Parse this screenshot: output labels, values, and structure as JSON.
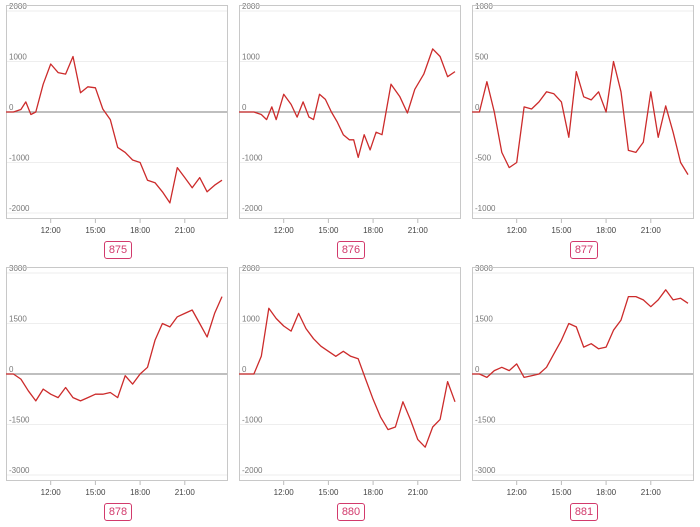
{
  "chart_data": [
    {
      "type": "line",
      "title": "875",
      "yticks": [
        -2000,
        -1000,
        0,
        1000,
        2000
      ],
      "ylim": [
        -2000,
        2000
      ],
      "xticks": [
        "12:00",
        "15:00",
        "18:00",
        "21:00"
      ],
      "grid": true,
      "series": [
        {
          "color": "#cc2b2b",
          "x": [
            9.0,
            9.5,
            10.0,
            10.33,
            10.67,
            11.0,
            11.5,
            12.0,
            12.5,
            13.0,
            13.5,
            14.0,
            14.5,
            15.0,
            15.5,
            16.0,
            16.5,
            17.0,
            17.5,
            18.0,
            18.5,
            19.0,
            19.5,
            20.0,
            20.5,
            21.0,
            21.5,
            22.0,
            22.5,
            23.0,
            23.5
          ],
          "values": [
            0,
            0,
            50,
            200,
            -50,
            0,
            550,
            950,
            780,
            750,
            1100,
            380,
            500,
            480,
            60,
            -150,
            -700,
            -800,
            -950,
            -1000,
            -1350,
            -1400,
            -1580,
            -1800,
            -1100,
            -1300,
            -1500,
            -1300,
            -1580,
            -1450,
            -1350
          ]
        }
      ]
    },
    {
      "type": "line",
      "title": "876",
      "yticks": [
        -2000,
        -1000,
        0,
        1000,
        2000
      ],
      "ylim": [
        -2000,
        2000
      ],
      "xticks": [
        "12:00",
        "15:00",
        "18:00",
        "21:00"
      ],
      "grid": true,
      "series": [
        {
          "color": "#cc2b2b",
          "x": [
            9.0,
            10.0,
            10.5,
            10.85,
            11.2,
            11.5,
            12.0,
            12.5,
            12.9,
            13.3,
            13.7,
            14.0,
            14.4,
            14.8,
            15.2,
            15.6,
            16.0,
            16.4,
            16.7,
            17.0,
            17.4,
            17.8,
            18.2,
            18.6,
            19.2,
            19.8,
            20.3,
            20.8,
            21.4,
            22.0,
            22.5,
            23.0,
            23.5
          ],
          "values": [
            0,
            0,
            -50,
            -150,
            100,
            -150,
            350,
            150,
            -100,
            200,
            -100,
            -150,
            350,
            250,
            0,
            -200,
            -450,
            -550,
            -550,
            -900,
            -450,
            -750,
            -400,
            -450,
            550,
            300,
            -20,
            450,
            750,
            1250,
            1100,
            700,
            800
          ]
        }
      ]
    },
    {
      "type": "line",
      "title": "877",
      "yticks": [
        -1000,
        -500,
        0,
        500,
        1000
      ],
      "ylim": [
        -1000,
        1000
      ],
      "xticks": [
        "12:00",
        "15:00",
        "18:00",
        "21:00"
      ],
      "grid": true,
      "series": [
        {
          "color": "#cc2b2b",
          "x": [
            9.0,
            9.5,
            10.0,
            10.5,
            11.0,
            11.5,
            12.0,
            12.5,
            13.0,
            13.5,
            14.0,
            14.5,
            15.0,
            15.5,
            16.0,
            16.5,
            17.0,
            17.5,
            18.0,
            18.5,
            19.0,
            19.5,
            20.0,
            20.5,
            21.0,
            21.5,
            22.0,
            22.5,
            23.0,
            23.5
          ],
          "values": [
            0,
            0,
            300,
            0,
            -400,
            -550,
            -500,
            50,
            30,
            100,
            200,
            180,
            100,
            -250,
            400,
            150,
            120,
            200,
            0,
            500,
            200,
            -380,
            -400,
            -300,
            200,
            -250,
            60,
            -200,
            -500,
            -620
          ]
        }
      ]
    },
    {
      "type": "line",
      "title": "878",
      "yticks": [
        -3000,
        -1500,
        0,
        1500,
        3000
      ],
      "ylim": [
        -3000,
        3000
      ],
      "xticks": [
        "12:00",
        "15:00",
        "18:00",
        "21:00"
      ],
      "grid": true,
      "series": [
        {
          "color": "#cc2b2b",
          "x": [
            9.0,
            9.5,
            10.0,
            10.5,
            11.0,
            11.5,
            12.0,
            12.5,
            13.0,
            13.5,
            14.0,
            14.5,
            15.0,
            15.5,
            16.0,
            16.5,
            17.0,
            17.5,
            18.0,
            18.5,
            19.0,
            19.5,
            20.0,
            20.5,
            21.0,
            21.5,
            22.0,
            22.5,
            23.0,
            23.5
          ],
          "values": [
            0,
            0,
            -150,
            -500,
            -800,
            -450,
            -600,
            -700,
            -400,
            -700,
            -800,
            -700,
            -600,
            -600,
            -550,
            -700,
            -50,
            -300,
            0,
            200,
            1000,
            1500,
            1400,
            1700,
            1800,
            1900,
            1500,
            1100,
            1800,
            2300
          ]
        }
      ]
    },
    {
      "type": "line",
      "title": "880",
      "yticks": [
        -2000,
        -1000,
        0,
        1000,
        2000
      ],
      "ylim": [
        -2000,
        2000
      ],
      "xticks": [
        "12:00",
        "15:00",
        "18:00",
        "21:00"
      ],
      "grid": true,
      "series": [
        {
          "color": "#cc2b2b",
          "x": [
            9.0,
            10.0,
            10.5,
            11.0,
            11.5,
            12.0,
            12.5,
            13.0,
            13.5,
            14.0,
            14.5,
            15.0,
            15.5,
            16.0,
            16.5,
            17.0,
            17.5,
            18.0,
            18.5,
            19.0,
            19.5,
            20.0,
            20.5,
            21.0,
            21.5,
            22.0,
            22.5,
            23.0,
            23.5
          ],
          "values": [
            0,
            0,
            350,
            1300,
            1100,
            950,
            850,
            1200,
            900,
            700,
            550,
            450,
            350,
            450,
            350,
            300,
            -100,
            -500,
            -850,
            -1100,
            -1050,
            -550,
            -900,
            -1300,
            -1450,
            -1050,
            -900,
            -150,
            -550
          ]
        }
      ]
    },
    {
      "type": "line",
      "title": "881",
      "yticks": [
        -3000,
        -1500,
        0,
        1500,
        3000
      ],
      "ylim": [
        -3000,
        3000
      ],
      "xticks": [
        "12:00",
        "15:00",
        "18:00",
        "21:00"
      ],
      "grid": true,
      "series": [
        {
          "color": "#cc2b2b",
          "x": [
            9.0,
            9.5,
            10.0,
            10.5,
            11.0,
            11.5,
            12.0,
            12.5,
            13.0,
            13.5,
            14.0,
            14.5,
            15.0,
            15.5,
            16.0,
            16.5,
            17.0,
            17.5,
            18.0,
            18.5,
            19.0,
            19.5,
            20.0,
            20.5,
            21.0,
            21.5,
            22.0,
            22.5,
            23.0,
            23.5
          ],
          "values": [
            0,
            0,
            -100,
            100,
            200,
            100,
            300,
            -100,
            -50,
            0,
            200,
            600,
            1000,
            1500,
            1400,
            800,
            900,
            750,
            800,
            1300,
            1600,
            2300,
            2300,
            2200,
            2000,
            2200,
            2500,
            2200,
            2250,
            2100
          ]
        }
      ]
    }
  ]
}
